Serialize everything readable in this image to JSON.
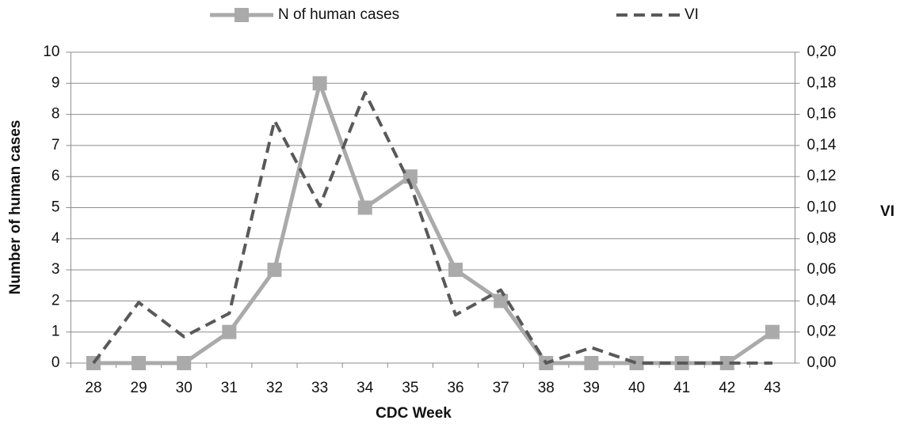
{
  "chart_data": {
    "type": "line",
    "categories": [
      "28",
      "29",
      "30",
      "31",
      "32",
      "33",
      "34",
      "35",
      "36",
      "37",
      "38",
      "39",
      "40",
      "41",
      "42",
      "43"
    ],
    "series": [
      {
        "name": "N of human cases",
        "color": "#aaaaaa",
        "marker": "square",
        "dashed": false,
        "values": [
          0,
          0,
          0,
          1,
          3,
          9,
          5,
          6,
          3,
          2,
          0,
          0,
          0,
          0,
          0,
          1
        ]
      },
      {
        "name": "VI",
        "color": "#595959",
        "dashed": true,
        "axis": "y2",
        "values": [
          0,
          0.039,
          0.017,
          0.032,
          0.156,
          0.101,
          0.174,
          0.115,
          0.031,
          0.047,
          0,
          0.01,
          0,
          0,
          0,
          0
        ]
      }
    ],
    "xlabel": "CDC Week",
    "ylabel": "Number of human cases",
    "y2label": "VI",
    "ylim": [
      0,
      10
    ],
    "yticks": [
      0,
      1,
      2,
      3,
      4,
      5,
      6,
      7,
      8,
      9,
      10
    ],
    "y2lim": [
      0,
      0.2
    ],
    "y2ticks": [
      {
        "value": 0,
        "label": "0,00"
      },
      {
        "value": 0.02,
        "label": "0,02"
      },
      {
        "value": 0.04,
        "label": "0,04"
      },
      {
        "value": 0.06,
        "label": "0,06"
      },
      {
        "value": 0.08,
        "label": "0,08"
      },
      {
        "value": 0.1,
        "label": "0,10"
      },
      {
        "value": 0.12,
        "label": "0,12"
      },
      {
        "value": 0.14,
        "label": "0,14"
      },
      {
        "value": 0.16,
        "label": "0,16"
      },
      {
        "value": 0.18,
        "label": "0,18"
      },
      {
        "value": 0.2,
        "label": "0,20"
      }
    ],
    "grid": true,
    "legend": "top"
  }
}
